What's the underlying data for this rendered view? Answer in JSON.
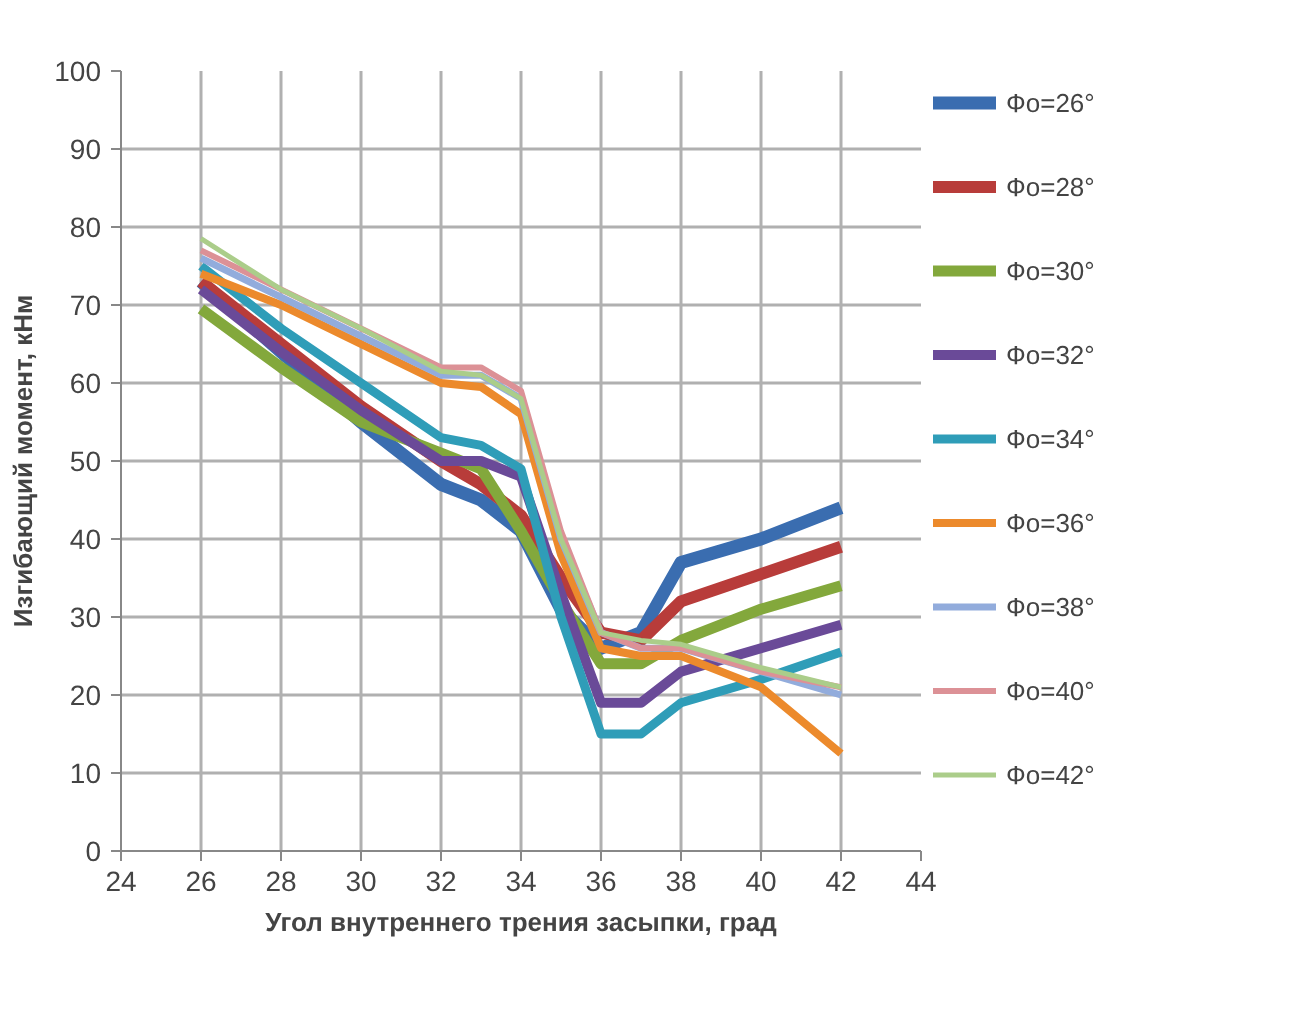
{
  "chart_data": {
    "type": "line",
    "xlabel": "Угол внутреннего трения засыпки, град",
    "ylabel": "Изгибающий момент, кНм",
    "x": [
      26,
      28,
      30,
      32,
      33,
      34,
      35,
      36,
      37,
      38,
      40,
      42
    ],
    "series": [
      {
        "name": "Фо=26°",
        "color": "#3a6db0",
        "values": [
          73,
          64,
          55,
          47,
          45,
          41,
          31,
          26,
          28,
          37,
          40,
          44
        ]
      },
      {
        "name": "Фо=28°",
        "color": "#b83c3a",
        "values": [
          73,
          65,
          57,
          50,
          47,
          43,
          35,
          28,
          27,
          32,
          35.5,
          39
        ]
      },
      {
        "name": "Фо=30°",
        "color": "#83a83c",
        "values": [
          69.5,
          62,
          55,
          51,
          49,
          41,
          32,
          24,
          24,
          27,
          31,
          34
        ]
      },
      {
        "name": "Фо=32°",
        "color": "#6a4a98",
        "values": [
          72,
          64,
          56.5,
          50,
          50,
          48,
          33,
          19,
          19,
          23,
          26,
          29
        ]
      },
      {
        "name": "Фо=34°",
        "color": "#2f9db8",
        "values": [
          75,
          67,
          60,
          53,
          52,
          49,
          30,
          15,
          15,
          19,
          22,
          25.5
        ]
      },
      {
        "name": "Фо=36°",
        "color": "#ec8a2c",
        "values": [
          74,
          70,
          65,
          60,
          59.5,
          56,
          38,
          26,
          25,
          25,
          21,
          12.5
        ]
      },
      {
        "name": "Фо=38°",
        "color": "#92acdc",
        "values": [
          76,
          71,
          66,
          61,
          61,
          58,
          40,
          28,
          26,
          26,
          23,
          20
        ]
      },
      {
        "name": "Фо=40°",
        "color": "#dc9196",
        "values": [
          77,
          72,
          67,
          62,
          62,
          59,
          41,
          28,
          26,
          26,
          23,
          21
        ]
      },
      {
        "name": "Фо=42°",
        "color": "#abcd8a",
        "values": [
          78.5,
          72,
          67,
          61.5,
          61,
          58,
          40,
          28,
          27,
          26.5,
          23.5,
          21
        ]
      }
    ],
    "xlim": [
      24,
      44
    ],
    "xticks": [
      24,
      26,
      28,
      30,
      32,
      34,
      36,
      38,
      40,
      42,
      44
    ],
    "ylim": [
      0,
      100
    ],
    "yticks": [
      0,
      10,
      20,
      30,
      40,
      50,
      60,
      70,
      80,
      90,
      100
    ],
    "grid": true,
    "legend": "right",
    "marker": "none",
    "line_style": "solid"
  }
}
